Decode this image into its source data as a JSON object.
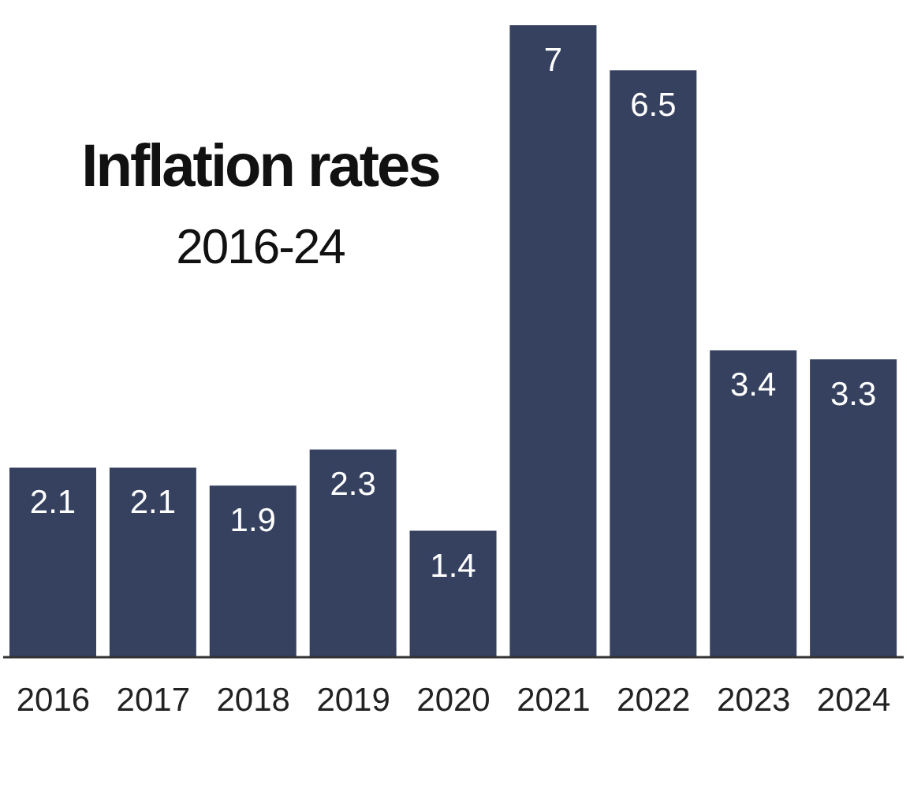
{
  "chart_data": {
    "type": "bar",
    "title": "Inflation rates",
    "subtitle": "2016-24",
    "categories": [
      "2016",
      "2017",
      "2018",
      "2019",
      "2020",
      "2021",
      "2022",
      "2023",
      "2024"
    ],
    "values": [
      2.1,
      2.1,
      1.9,
      2.3,
      1.4,
      7,
      6.5,
      3.4,
      3.3
    ],
    "color": "#35415f",
    "ylim": [
      0,
      7
    ],
    "data_labels": true,
    "tick_labels": "x"
  }
}
